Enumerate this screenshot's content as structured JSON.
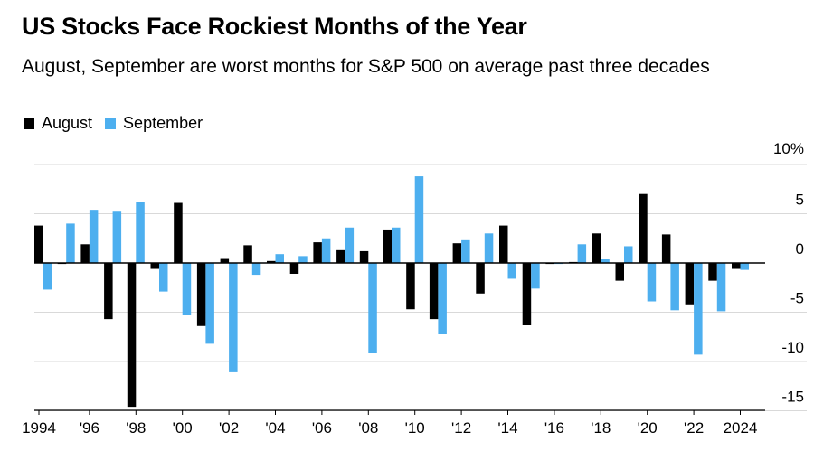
{
  "header": {
    "title": "US Stocks Face Rockiest Months of the Year",
    "subtitle": "August, September are worst months for S&P 500 on average past three decades"
  },
  "colors": {
    "august": "#000000",
    "september": "#4DAFEF",
    "grid": "#d9d9d9",
    "axis": "#000000"
  },
  "chart_data": {
    "type": "bar",
    "title": "US Stocks Face Rockiest Months of the Year",
    "subtitle": "August, September are worst months for S&P 500 on average past three decades",
    "xlabel": "",
    "ylabel": "",
    "ylim": [
      -15,
      10
    ],
    "yticks": [
      {
        "value": 10,
        "label": "10%"
      },
      {
        "value": 5,
        "label": "5"
      },
      {
        "value": 0,
        "label": "0"
      },
      {
        "value": -5,
        "label": "-5"
      },
      {
        "value": -10,
        "label": "-10"
      },
      {
        "value": -15,
        "label": "-15"
      }
    ],
    "legend_position": "top-left",
    "categories": [
      "1994",
      "1995",
      "1996",
      "1997",
      "1998",
      "1999",
      "2000",
      "2001",
      "2002",
      "2003",
      "2004",
      "2005",
      "2006",
      "2007",
      "2008",
      "2009",
      "2010",
      "2011",
      "2012",
      "2013",
      "2014",
      "2015",
      "2016",
      "2017",
      "2018",
      "2019",
      "2020",
      "2021",
      "2022",
      "2023",
      "2024"
    ],
    "xtick_labels": [
      {
        "category": "1994",
        "label": "1994"
      },
      {
        "category": "1996",
        "label": "'96"
      },
      {
        "category": "1998",
        "label": "'98"
      },
      {
        "category": "2000",
        "label": "'00"
      },
      {
        "category": "2002",
        "label": "'02"
      },
      {
        "category": "2004",
        "label": "'04"
      },
      {
        "category": "2006",
        "label": "'06"
      },
      {
        "category": "2008",
        "label": "'08"
      },
      {
        "category": "2010",
        "label": "'10"
      },
      {
        "category": "2012",
        "label": "'12"
      },
      {
        "category": "2014",
        "label": "'14"
      },
      {
        "category": "2016",
        "label": "'16"
      },
      {
        "category": "2018",
        "label": "'18"
      },
      {
        "category": "2020",
        "label": "'20"
      },
      {
        "category": "2022",
        "label": "'22"
      },
      {
        "category": "2024",
        "label": "2024"
      }
    ],
    "series": [
      {
        "name": "August",
        "key": "august",
        "values": [
          3.8,
          -0.1,
          1.9,
          -5.7,
          -14.6,
          -0.6,
          6.1,
          -6.4,
          0.5,
          1.8,
          0.2,
          -1.1,
          2.1,
          1.3,
          1.2,
          3.4,
          -4.7,
          -5.7,
          2.0,
          -3.1,
          3.8,
          -6.3,
          -0.1,
          0.1,
          3.0,
          -1.8,
          7.0,
          2.9,
          -4.2,
          -1.8,
          -0.6
        ]
      },
      {
        "name": "September",
        "key": "september",
        "values": [
          -2.7,
          4.0,
          5.4,
          5.3,
          6.2,
          -2.9,
          -5.3,
          -8.2,
          -11.0,
          -1.2,
          0.9,
          0.7,
          2.5,
          3.6,
          -9.1,
          3.6,
          8.8,
          -7.2,
          2.4,
          3.0,
          -1.6,
          -2.6,
          -0.1,
          1.9,
          0.4,
          1.7,
          -3.9,
          -4.8,
          -9.3,
          -4.9,
          -0.7
        ]
      }
    ]
  }
}
